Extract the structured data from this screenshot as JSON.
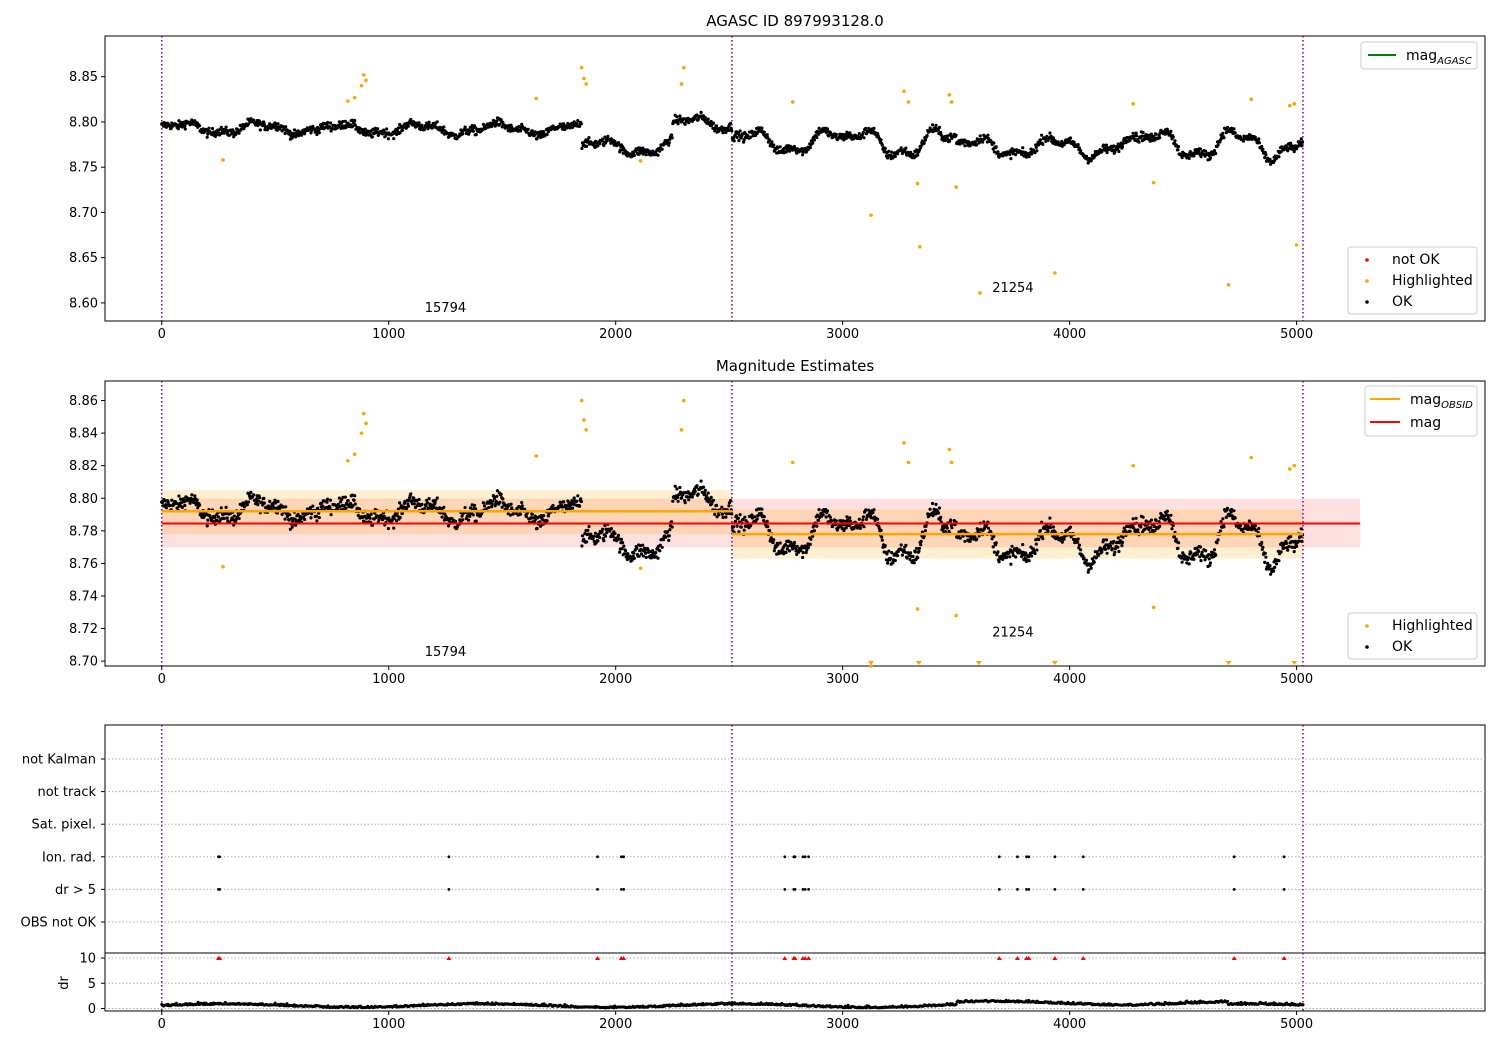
{
  "chart_data": [
    {
      "type": "scatter",
      "title": "AGASC ID 897993128.0",
      "xlim": [
        -250,
        5830
      ],
      "ylim": [
        8.58,
        8.895
      ],
      "xticks": [
        0,
        1000,
        2000,
        3000,
        4000,
        5000
      ],
      "yticks": [
        8.6,
        8.65,
        8.7,
        8.75,
        8.8,
        8.85
      ],
      "ytick_labels": [
        "8.60",
        "8.65",
        "8.70",
        "8.75",
        "8.80",
        "8.85"
      ],
      "obsid_boundaries": [
        0,
        2512,
        5028
      ],
      "obsid_labels": [
        {
          "text": "15794",
          "x": 1250,
          "y": 8.59
        },
        {
          "text": "21254",
          "x": 3750,
          "y": 8.612
        }
      ],
      "line_legend": {
        "label": "mag",
        "subscript": "AGASC",
        "color": "#008000",
        "placement": "upper right"
      },
      "point_legend": {
        "placement": "lower right",
        "entries": [
          {
            "label": "not OK",
            "color": "#ff0000"
          },
          {
            "label": "Highlighted",
            "color": "#ffa500"
          },
          {
            "label": "OK",
            "color": "#000000"
          }
        ]
      },
      "series": [
        {
          "name": "OK",
          "color": "#000000",
          "generated": true
        },
        {
          "name": "Highlighted",
          "color": "#ffa500",
          "points": [
            [
              270,
              8.758
            ],
            [
              820,
              8.823
            ],
            [
              850,
              8.827
            ],
            [
              880,
              8.84
            ],
            [
              890,
              8.852
            ],
            [
              900,
              8.846
            ],
            [
              1650,
              8.826
            ],
            [
              1850,
              8.86
            ],
            [
              1860,
              8.848
            ],
            [
              1870,
              8.842
            ],
            [
              2110,
              8.757
            ],
            [
              2300,
              8.86
            ],
            [
              2290,
              8.842
            ],
            [
              2780,
              8.822
            ],
            [
              3125,
              8.697
            ],
            [
              3270,
              8.834
            ],
            [
              3290,
              8.822
            ],
            [
              3330,
              8.732
            ],
            [
              3340,
              8.662
            ],
            [
              3470,
              8.83
            ],
            [
              3480,
              8.822
            ],
            [
              3500,
              8.728
            ],
            [
              3605,
              8.611
            ],
            [
              3935,
              8.633
            ],
            [
              4280,
              8.82
            ],
            [
              4370,
              8.733
            ],
            [
              4700,
              8.62
            ],
            [
              4800,
              8.825
            ],
            [
              4970,
              8.818
            ],
            [
              4990,
              8.82
            ],
            [
              5000,
              8.664
            ]
          ]
        }
      ],
      "baseline_segments": [
        {
          "start": 0,
          "end": 700,
          "level": 8.793,
          "amp": 0.006
        },
        {
          "start": 700,
          "end": 1850,
          "level": 8.792,
          "amp": 0.006
        },
        {
          "start": 1850,
          "end": 2250,
          "level": 8.772,
          "amp": 0.008
        },
        {
          "start": 2250,
          "end": 2512,
          "level": 8.798,
          "amp": 0.007
        },
        {
          "start": 2512,
          "end": 3000,
          "level": 8.778,
          "amp": 0.012
        },
        {
          "start": 3000,
          "end": 3500,
          "level": 8.776,
          "amp": 0.015
        },
        {
          "start": 3500,
          "end": 4300,
          "level": 8.772,
          "amp": 0.01
        },
        {
          "start": 4300,
          "end": 5028,
          "level": 8.775,
          "amp": 0.015
        }
      ]
    },
    {
      "type": "scatter",
      "title": "Magnitude Estimates",
      "xlim": [
        -250,
        5830
      ],
      "ylim": [
        8.697,
        8.872
      ],
      "xticks": [
        0,
        1000,
        2000,
        3000,
        4000,
        5000
      ],
      "yticks": [
        8.7,
        8.72,
        8.74,
        8.76,
        8.78,
        8.8,
        8.82,
        8.84,
        8.86
      ],
      "ytick_labels": [
        "8.70",
        "8.72",
        "8.74",
        "8.76",
        "8.78",
        "8.80",
        "8.82",
        "8.84",
        "8.86"
      ],
      "obsid_boundaries": [
        0,
        2512,
        5028
      ],
      "obsid_labels": [
        {
          "text": "15794",
          "x": 1250,
          "y": 8.703
        },
        {
          "text": "21254",
          "x": 3750,
          "y": 8.715
        }
      ],
      "line_legend": [
        {
          "label": "mag",
          "subscript": "OBSID",
          "color": "#ffa500"
        },
        {
          "label": "mag",
          "color": "#ff0000"
        }
      ],
      "point_legend": {
        "placement": "lower right",
        "entries": [
          {
            "label": "Highlighted",
            "color": "#ffa500"
          },
          {
            "label": "OK",
            "color": "#000000"
          }
        ]
      },
      "mag": {
        "value": 8.7845,
        "band": [
          8.7698,
          8.7997
        ],
        "x_range": [
          0,
          5280
        ],
        "color": "#ff0000"
      },
      "mag_obsid": [
        {
          "x_range": [
            0,
            2512
          ],
          "value": 8.792,
          "band": [
            8.778,
            8.805
          ]
        },
        {
          "x_range": [
            2512,
            5028
          ],
          "value": 8.778,
          "band": [
            8.763,
            8.793
          ]
        }
      ],
      "out_of_range_markers": {
        "x": [
          3125,
          3335,
          3600,
          3935,
          4700,
          4990
        ],
        "color": "#ffa500"
      }
    },
    {
      "type": "scatter",
      "title": "",
      "xlim": [
        -250,
        5830
      ],
      "xticks": [
        0,
        1000,
        2000,
        3000,
        4000,
        5000
      ],
      "flag_rows": [
        "not Kalman",
        "not track",
        "Sat. pixel.",
        "Ion. rad.",
        "dr > 5",
        "OBS not OK"
      ],
      "flag_events_x": [
        250,
        255,
        1265,
        1920,
        2025,
        2035,
        2745,
        2785,
        2790,
        2825,
        2835,
        2850,
        3690,
        3770,
        3810,
        3820,
        3935,
        4060,
        4725,
        4945
      ],
      "flag_events_rows": [
        "Ion. rad.",
        "dr > 5"
      ],
      "obsid_boundaries": [
        0,
        2512,
        5028
      ],
      "dr_panel": {
        "ylabel": "dr",
        "ylim": [
          -0.5,
          11
        ],
        "yticks": [
          0,
          5,
          10
        ],
        "ytick_labels": [
          "0",
          "5",
          "10"
        ],
        "clipped_marker_value": 10,
        "clipped_marker_color": "#ff0000",
        "series": [
          {
            "name": "dr",
            "color": "#000000",
            "generated": true
          }
        ]
      }
    }
  ]
}
